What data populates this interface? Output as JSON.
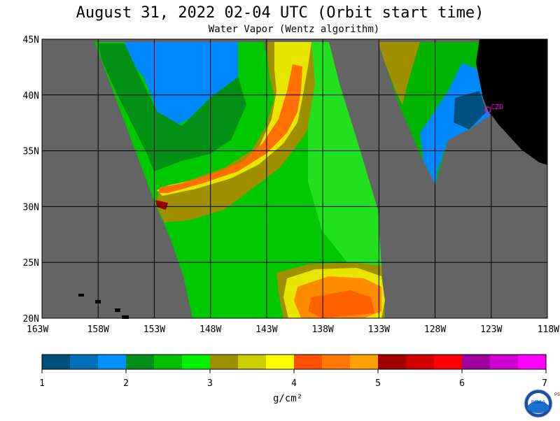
{
  "header": {
    "title": "August 31, 2022  02-04 UTC  (Orbit start time)",
    "subtitle": "Water Vapor (Wentz algorithm)"
  },
  "map": {
    "lon_range": [
      -163,
      -118
    ],
    "lat_range": [
      20,
      45
    ],
    "lon_labels": [
      "163W",
      "158W",
      "153W",
      "148W",
      "143W",
      "138W",
      "133W",
      "128W",
      "123W",
      "118W"
    ],
    "lat_labels": [
      "45N",
      "40N",
      "35N",
      "30N",
      "25N",
      "20N"
    ],
    "station_label": "CZD",
    "land_color": "#000000",
    "nodata_color": "#646464"
  },
  "colorbar": {
    "colors": [
      "#00507d",
      "#0070b8",
      "#0090ff",
      "#00901a",
      "#00c000",
      "#00f000",
      "#a09000",
      "#cccc00",
      "#ffff00",
      "#ff5000",
      "#ff7800",
      "#ffa000",
      "#a00000",
      "#d00000",
      "#ff0000",
      "#a000a0",
      "#d000d0",
      "#ff00ff"
    ],
    "tick_labels": [
      "1",
      "2",
      "3",
      "4",
      "5",
      "6",
      "7"
    ],
    "unit": "g/cm²"
  },
  "logo": {
    "text": "NOAA",
    "side_letters": "PSL"
  }
}
